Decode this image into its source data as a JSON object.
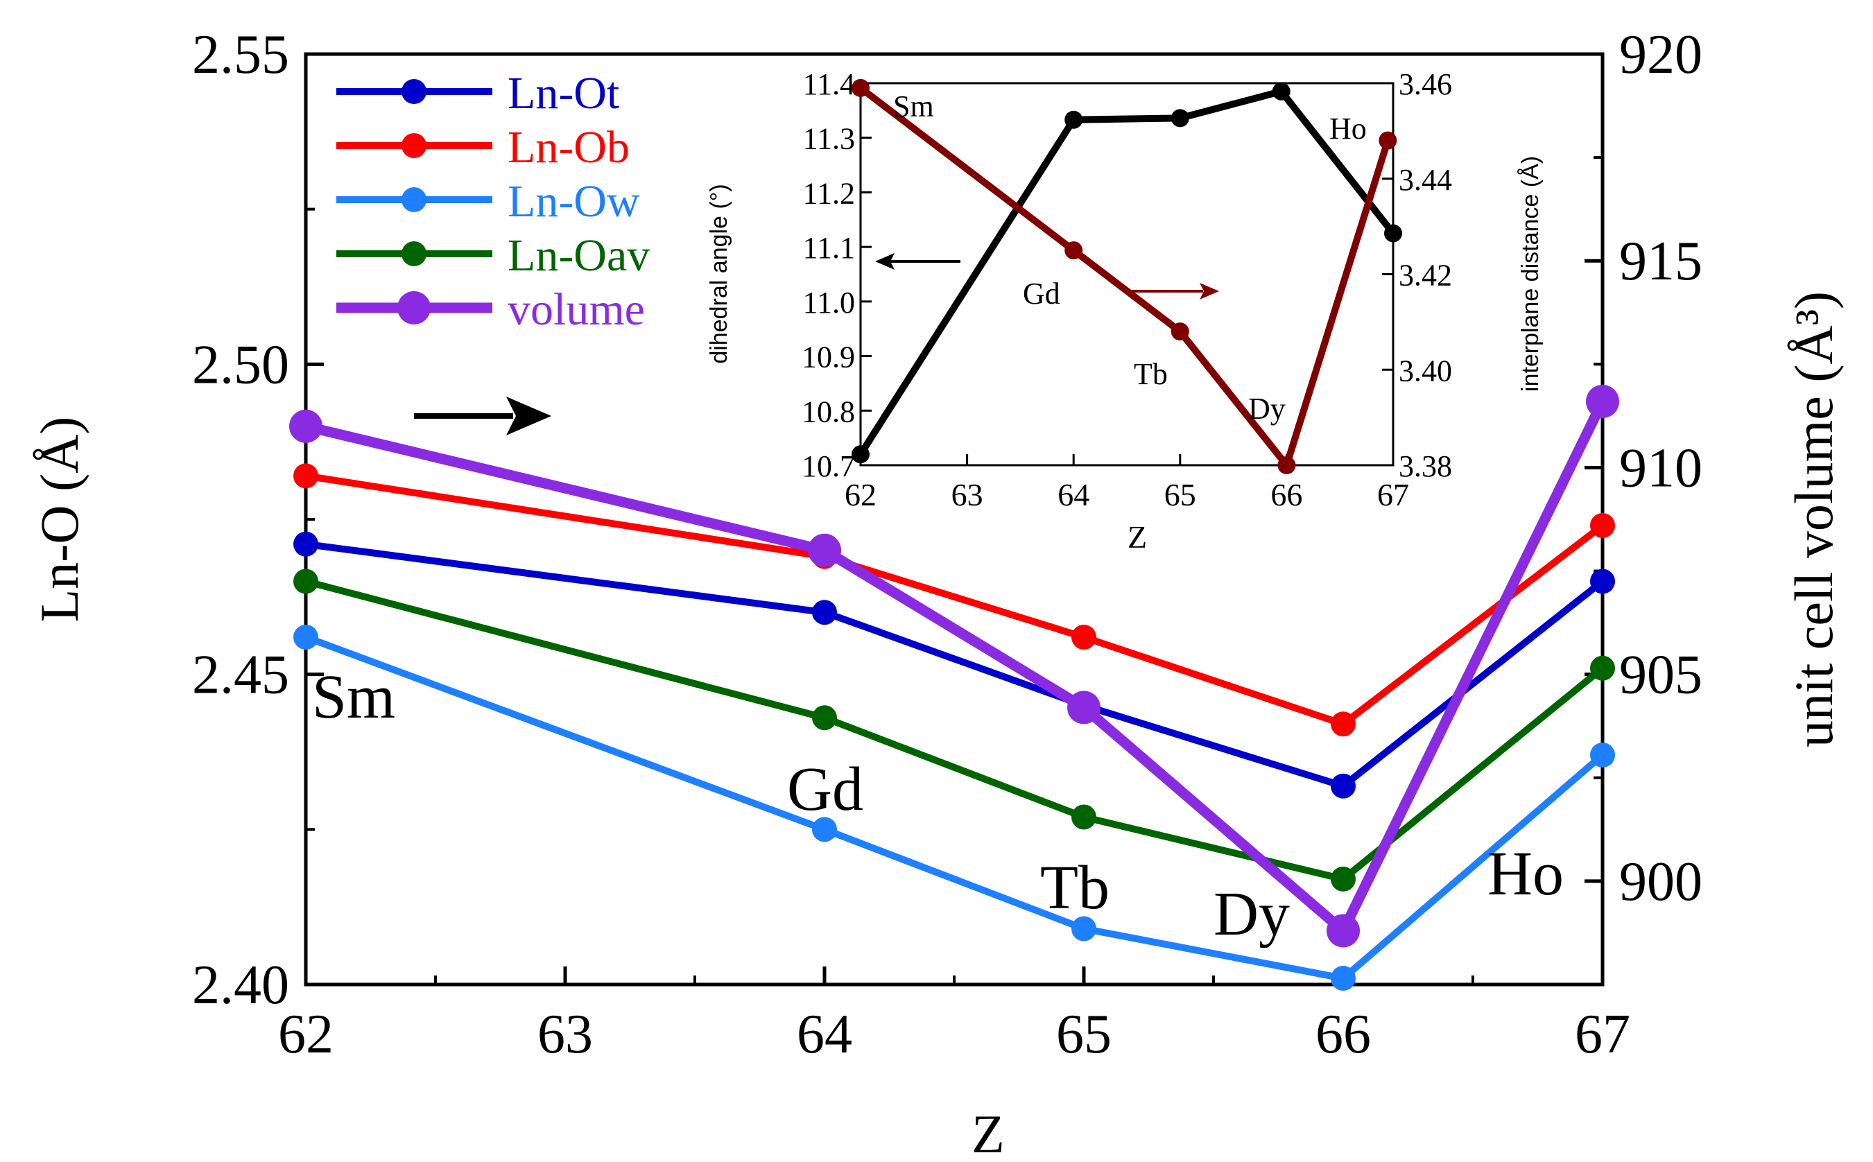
{
  "chart_data": [
    {
      "type": "line",
      "x": [
        62,
        64,
        65,
        66,
        67
      ],
      "xlabel": "Z",
      "xlim": [
        62,
        67
      ],
      "ylabel": "Ln-O (Å)",
      "ylim": [
        2.4,
        2.55
      ],
      "yticks": [
        "2.40",
        "2.45",
        "2.50",
        "2.55"
      ],
      "xticks": [
        "62",
        "63",
        "64",
        "65",
        "66",
        "67"
      ],
      "y2label": "unit cell volume (Å³)",
      "y2lim": [
        897.5,
        920
      ],
      "y2ticks": [
        "900",
        "905",
        "910",
        "915",
        "920"
      ],
      "series": [
        {
          "name": "Ln-Ot",
          "axis": "left",
          "color": "#0000cc",
          "values": [
            2.471,
            2.46,
            2.445,
            2.432,
            2.465
          ]
        },
        {
          "name": "Ln-Ob",
          "axis": "left",
          "color": "#ff0000",
          "values": [
            2.482,
            2.469,
            2.456,
            2.442,
            2.474
          ]
        },
        {
          "name": "Ln-Ow",
          "axis": "left",
          "color": "#1e7fff",
          "values": [
            2.456,
            2.425,
            2.409,
            2.401,
            2.437
          ]
        },
        {
          "name": "Ln-Oav",
          "axis": "left",
          "color": "#006400",
          "values": [
            2.465,
            2.443,
            2.427,
            2.417,
            2.451
          ]
        },
        {
          "name": "volume",
          "axis": "right",
          "color": "#8a2be2",
          "values": [
            911.0,
            908.0,
            904.2,
            898.8,
            911.6
          ]
        }
      ],
      "point_labels": [
        "Sm",
        "Gd",
        "Tb",
        "Dy",
        "Ho"
      ],
      "arrow": "right"
    },
    {
      "type": "line",
      "x": [
        62,
        64,
        65,
        66,
        67
      ],
      "xlabel": "Z",
      "xlim": [
        62,
        67
      ],
      "xticks": [
        "62",
        "63",
        "64",
        "65",
        "66",
        "67"
      ],
      "ylabel": "dihedral angle (°)",
      "ylim": [
        10.7,
        11.4
      ],
      "yticks": [
        "10.7",
        "10.8",
        "10.9",
        "11.0",
        "11.1",
        "11.2",
        "11.3",
        "11.4"
      ],
      "y2label": "interplane distance (Å)",
      "y2lim": [
        3.38,
        3.46
      ],
      "y2ticks": [
        "3.38",
        "3.40",
        "3.42",
        "3.44",
        "3.46"
      ],
      "series": [
        {
          "name": "dihedral angle",
          "axis": "left",
          "color": "#000000",
          "values": [
            10.72,
            11.333,
            11.336,
            11.385,
            11.125
          ],
          "x": [
            62,
            64,
            65,
            65.95,
            67
          ]
        },
        {
          "name": "interplane distance",
          "axis": "right",
          "color": "#800000",
          "values": [
            3.459,
            3.425,
            3.408,
            3.38,
            3.448
          ],
          "x": [
            62,
            64,
            65,
            66,
            66.95
          ]
        }
      ],
      "point_labels": [
        "Sm",
        "Gd",
        "Tb",
        "Dy",
        "Ho"
      ]
    }
  ]
}
